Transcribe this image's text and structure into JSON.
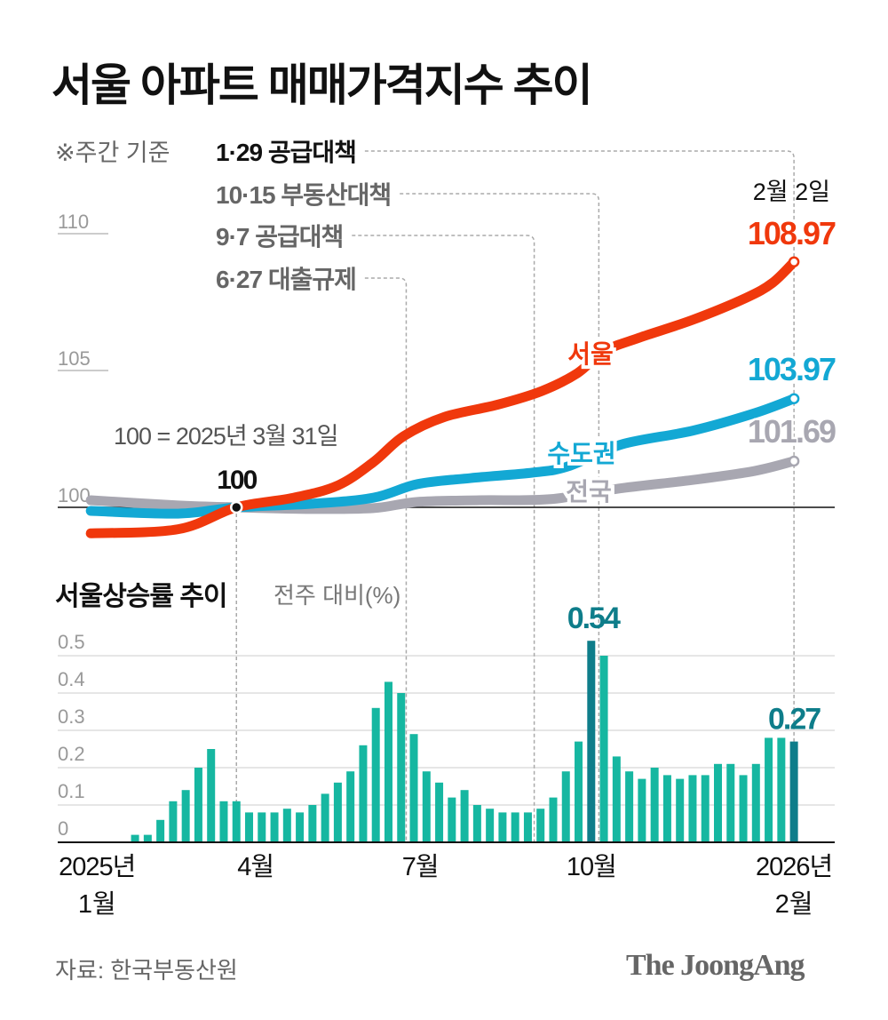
{
  "title": "서울 아파트 매매가격지수 추이",
  "note": "※주간 기준",
  "subchart_title": "서울상승률 추이",
  "subchart_unit": "전주 대비(%)",
  "source": "자료: 한국부동산원",
  "logo": "The JoongAng",
  "colors": {
    "seoul": "#f0380c",
    "capital": "#13a8d4",
    "national": "#a8a7b1",
    "bar": "#16b7a1",
    "bar_highlight": "#0e7d8a"
  },
  "chart_data": [
    {
      "type": "line",
      "title": "서울 아파트 매매가격지수 추이",
      "base_note": "100 = 2025년 3월 31일",
      "base_label": "100",
      "end_date_label": "2월 2일",
      "x_unit": "weeks since 2025-01-06",
      "xlim": [
        0,
        56
      ],
      "ylim": [
        98.5,
        111
      ],
      "yticks": [
        "100",
        "105",
        "110"
      ],
      "ytick_values": [
        100,
        105,
        110
      ],
      "series": [
        {
          "name": "서울",
          "key": "seoul",
          "end_label": "108.97",
          "points": [
            [
              0.5,
              99.05
            ],
            [
              7.4,
              99.2
            ],
            [
              12,
              100
            ],
            [
              16.5,
              100.35
            ],
            [
              20,
              100.8
            ],
            [
              22.8,
              101.65
            ],
            [
              25.2,
              102.6
            ],
            [
              28.4,
              103.3
            ],
            [
              32.6,
              103.75
            ],
            [
              36.1,
              104.25
            ],
            [
              38.9,
              104.9
            ],
            [
              41,
              105.7
            ],
            [
              43.8,
              106.2
            ],
            [
              48,
              106.85
            ],
            [
              52.2,
              107.65
            ],
            [
              54.3,
              108.2
            ],
            [
              56,
              108.97
            ]
          ]
        },
        {
          "name": "수도권",
          "key": "capital",
          "end_label": "103.97",
          "points": [
            [
              0.5,
              99.87
            ],
            [
              7.4,
              99.77
            ],
            [
              12,
              100
            ],
            [
              17.9,
              100.13
            ],
            [
              22.8,
              100.35
            ],
            [
              26.3,
              100.85
            ],
            [
              30.5,
              101.07
            ],
            [
              35.4,
              101.27
            ],
            [
              38.2,
              101.5
            ],
            [
              42.4,
              102.3
            ],
            [
              48,
              102.8
            ],
            [
              52.9,
              103.44
            ],
            [
              56,
              103.97
            ]
          ]
        },
        {
          "name": "전국",
          "key": "national",
          "end_label": "101.69",
          "points": [
            [
              0.5,
              100.26
            ],
            [
              7.4,
              100.07
            ],
            [
              12,
              100
            ],
            [
              17.9,
              99.94
            ],
            [
              22.8,
              99.97
            ],
            [
              26.3,
              100.2
            ],
            [
              31.2,
              100.26
            ],
            [
              36.8,
              100.3
            ],
            [
              42.4,
              100.7
            ],
            [
              48,
              101.0
            ],
            [
              52.9,
              101.33
            ],
            [
              56,
              101.69
            ]
          ]
        }
      ],
      "events": [
        {
          "label": "1·29 공급대책",
          "week": 56,
          "current": true
        },
        {
          "label": "10·15 부동산대책",
          "week": 40.6
        },
        {
          "label": "9·7 공급대책",
          "week": 35.5
        },
        {
          "label": "6·27 대출규제",
          "week": 25.4
        }
      ]
    },
    {
      "type": "bar",
      "title": "서울상승률 추이",
      "ylabel": "전주 대비(%)",
      "ylim": [
        0,
        0.55
      ],
      "yticks": [
        "0",
        "0.1",
        "0.2",
        "0.3",
        "0.4",
        "0.5"
      ],
      "ytick_values": [
        0,
        0.1,
        0.2,
        0.3,
        0.4,
        0.5
      ],
      "xticks": [
        {
          "line1": "2025년",
          "line2": "1월",
          "week": 1
        },
        {
          "line1": "4월",
          "line2": "",
          "week": 13.5
        },
        {
          "line1": "7월",
          "line2": "",
          "week": 26.5
        },
        {
          "line1": "10월",
          "line2": "",
          "week": 40
        },
        {
          "line1": "2026년",
          "line2": "2월",
          "week": 56
        }
      ],
      "values": [
        0,
        0,
        0,
        0,
        0.02,
        0.02,
        0.06,
        0.11,
        0.14,
        0.2,
        0.25,
        0.11,
        0.11,
        0.08,
        0.08,
        0.08,
        0.09,
        0.08,
        0.1,
        0.13,
        0.16,
        0.19,
        0.26,
        0.36,
        0.43,
        0.4,
        0.29,
        0.19,
        0.16,
        0.12,
        0.14,
        0.1,
        0.09,
        0.08,
        0.08,
        0.08,
        0.09,
        0.12,
        0.19,
        0.27,
        0.54,
        0.5,
        0.23,
        0.19,
        0.17,
        0.2,
        0.18,
        0.17,
        0.18,
        0.18,
        0.21,
        0.21,
        0.18,
        0.21,
        0.28,
        0.28,
        0.27
      ],
      "annotations": [
        {
          "week": 40,
          "label": "0.54"
        },
        {
          "week": 56,
          "label": "0.27"
        }
      ]
    }
  ]
}
